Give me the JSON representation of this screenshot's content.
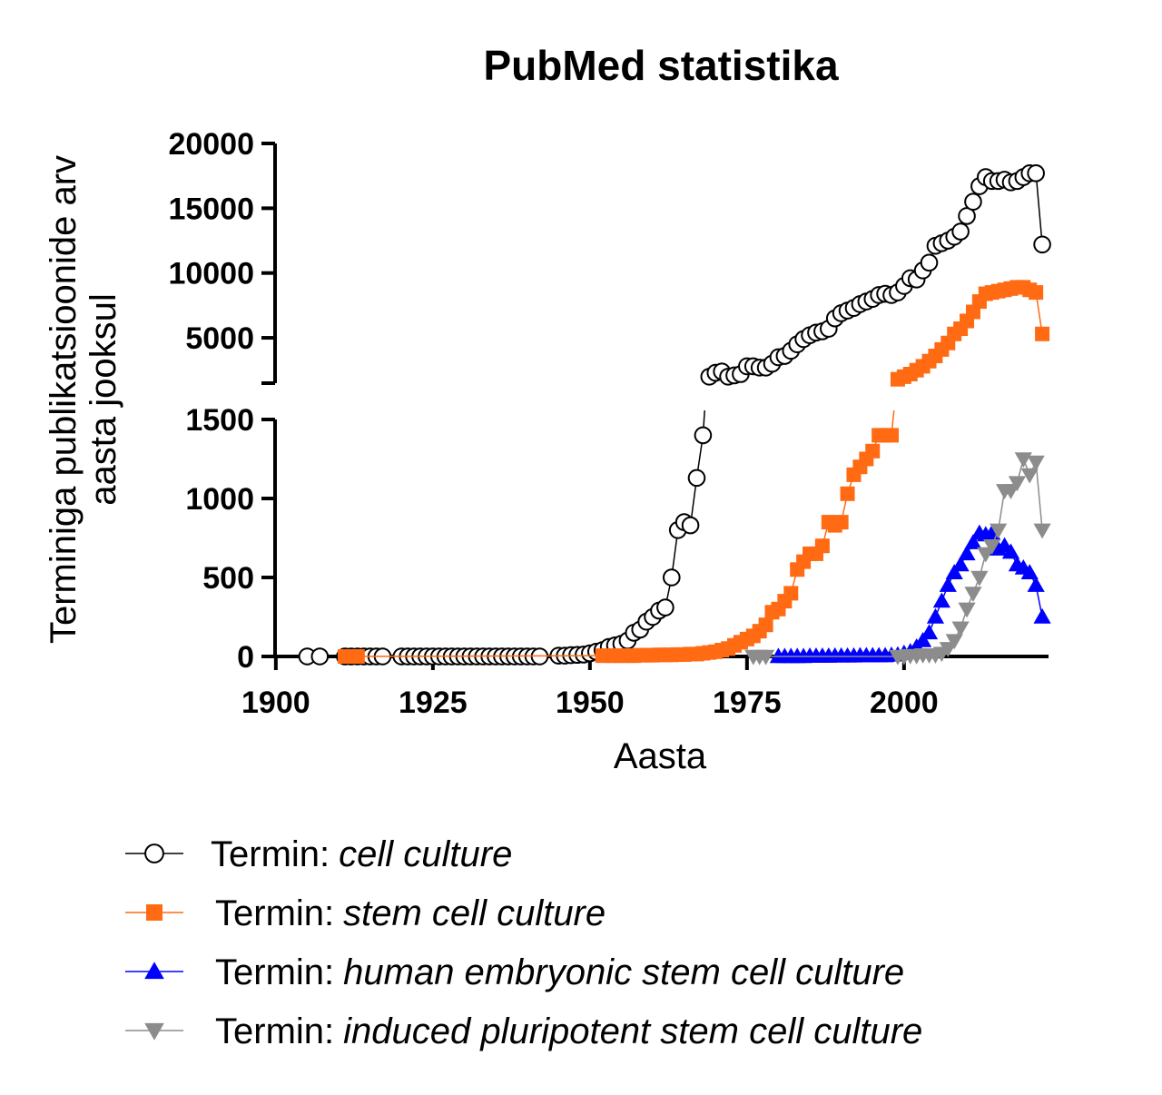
{
  "chart_data": {
    "type": "line",
    "title": "PubMed statistika",
    "xlabel": "Aasta",
    "ylabel": [
      "Terminiga publikatsioonide arv",
      "aasta jooksul"
    ],
    "xlim": [
      1898,
      2023
    ],
    "xticks": [
      1900,
      1925,
      1950,
      1975,
      2000
    ],
    "y_segments": [
      {
        "ylim": [
          0,
          1500
        ],
        "yticks": [
          0,
          500,
          1000,
          1500
        ]
      },
      {
        "ylim": [
          1500,
          20000
        ],
        "yticks": [
          5000,
          10000,
          15000,
          20000
        ]
      }
    ],
    "legend_prefix": "Termin:",
    "series": [
      {
        "name": "cell culture",
        "color": "#000000",
        "marker": "circle",
        "x": [
          1905,
          1907,
          1911,
          1912,
          1913,
          1914,
          1915,
          1916,
          1917,
          1920,
          1921,
          1922,
          1923,
          1924,
          1925,
          1926,
          1927,
          1928,
          1929,
          1930,
          1931,
          1932,
          1933,
          1934,
          1935,
          1936,
          1937,
          1938,
          1939,
          1940,
          1941,
          1942,
          1945,
          1946,
          1947,
          1948,
          1949,
          1950,
          1951,
          1952,
          1953,
          1954,
          1955,
          1956,
          1957,
          1958,
          1959,
          1960,
          1961,
          1962,
          1963,
          1964,
          1965,
          1966,
          1967,
          1968,
          1969,
          1970,
          1971,
          1972,
          1973,
          1974,
          1975,
          1976,
          1977,
          1978,
          1979,
          1980,
          1981,
          1982,
          1983,
          1984,
          1985,
          1986,
          1987,
          1988,
          1989,
          1990,
          1991,
          1992,
          1993,
          1994,
          1995,
          1996,
          1997,
          1998,
          1999,
          2000,
          2001,
          2002,
          2003,
          2004,
          2005,
          2006,
          2007,
          2008,
          2009,
          2010,
          2011,
          2012,
          2013,
          2014,
          2015,
          2016,
          2017,
          2018,
          2019,
          2020,
          2021,
          2022
        ],
        "values": [
          0,
          0,
          0,
          0,
          0,
          0,
          0,
          0,
          0,
          0,
          0,
          0,
          0,
          0,
          0,
          0,
          0,
          0,
          0,
          0,
          0,
          0,
          0,
          0,
          0,
          0,
          0,
          0,
          0,
          0,
          0,
          0,
          5,
          5,
          8,
          10,
          12,
          20,
          30,
          40,
          60,
          70,
          80,
          100,
          150,
          170,
          220,
          250,
          290,
          310,
          500,
          800,
          850,
          830,
          1130,
          1400,
          2000,
          2300,
          2400,
          2000,
          2100,
          2200,
          2800,
          2800,
          2700,
          2700,
          3000,
          3500,
          3600,
          4000,
          4500,
          4900,
          5200,
          5400,
          5500,
          5700,
          6500,
          6900,
          7100,
          7300,
          7600,
          7800,
          8000,
          8300,
          8400,
          8300,
          8500,
          9000,
          9600,
          9500,
          10200,
          10800,
          12100,
          12300,
          12500,
          12800,
          13200,
          14400,
          15500,
          16700,
          17400,
          17100,
          17100,
          17200,
          17000,
          17100,
          17400,
          17700,
          17700,
          12200
        ]
      },
      {
        "name": "stem cell culture",
        "color": "#ff6a13",
        "marker": "square",
        "x": [
          1911,
          1912,
          1913,
          1952,
          1953,
          1954,
          1955,
          1956,
          1957,
          1958,
          1959,
          1960,
          1961,
          1962,
          1963,
          1964,
          1965,
          1966,
          1967,
          1968,
          1969,
          1970,
          1971,
          1972,
          1973,
          1974,
          1975,
          1976,
          1977,
          1978,
          1979,
          1980,
          1981,
          1982,
          1983,
          1984,
          1985,
          1986,
          1987,
          1988,
          1989,
          1990,
          1991,
          1992,
          1993,
          1994,
          1995,
          1996,
          1997,
          1998,
          1999,
          2000,
          2001,
          2002,
          2003,
          2004,
          2005,
          2006,
          2007,
          2008,
          2009,
          2010,
          2011,
          2012,
          2013,
          2014,
          2015,
          2016,
          2017,
          2018,
          2019,
          2020,
          2021,
          2022
        ],
        "values": [
          0,
          0,
          0,
          5,
          5,
          5,
          5,
          5,
          5,
          8,
          8,
          8,
          10,
          10,
          10,
          12,
          12,
          15,
          15,
          20,
          25,
          30,
          40,
          50,
          70,
          90,
          110,
          130,
          160,
          200,
          280,
          300,
          350,
          400,
          550,
          600,
          650,
          650,
          700,
          850,
          830,
          850,
          1030,
          1150,
          1200,
          1250,
          1300,
          1400,
          1400,
          1400,
          1800,
          2000,
          2200,
          2500,
          2800,
          3200,
          3600,
          4100,
          4600,
          5300,
          5700,
          6300,
          7000,
          7800,
          8400,
          8500,
          8600,
          8700,
          8800,
          8900,
          8900,
          8700,
          8500,
          5300
        ]
      },
      {
        "name": "human embryonic stem cell culture",
        "color": "#0000ff",
        "marker": "triangle-up",
        "x": [
          1980,
          1981,
          1982,
          1983,
          1984,
          1985,
          1986,
          1987,
          1988,
          1989,
          1990,
          1991,
          1992,
          1993,
          1994,
          1995,
          1996,
          1997,
          1998,
          1999,
          2000,
          2001,
          2002,
          2003,
          2004,
          2005,
          2006,
          2007,
          2008,
          2009,
          2010,
          2011,
          2012,
          2013,
          2014,
          2015,
          2016,
          2017,
          2018,
          2019,
          2020,
          2021,
          2022
        ],
        "values": [
          0,
          0,
          0,
          0,
          0,
          2,
          2,
          2,
          2,
          3,
          3,
          3,
          3,
          5,
          5,
          5,
          5,
          5,
          8,
          10,
          20,
          30,
          60,
          100,
          150,
          250,
          350,
          450,
          530,
          580,
          650,
          720,
          780,
          770,
          780,
          680,
          700,
          660,
          580,
          560,
          530,
          450,
          250
        ]
      },
      {
        "name": "induced pluripotent stem cell culture",
        "color": "#8c8c8c",
        "marker": "triangle-down",
        "x": [
          1976,
          1977,
          1978,
          1999,
          2000,
          2001,
          2002,
          2003,
          2004,
          2005,
          2006,
          2007,
          2008,
          2009,
          2010,
          2011,
          2012,
          2013,
          2014,
          2015,
          2016,
          2017,
          2018,
          2019,
          2020,
          2021,
          2022
        ],
        "values": [
          0,
          0,
          0,
          0,
          0,
          5,
          5,
          10,
          10,
          10,
          20,
          50,
          100,
          180,
          300,
          400,
          500,
          650,
          700,
          800,
          1050,
          1050,
          1100,
          1250,
          1150,
          1230,
          800
        ]
      }
    ]
  }
}
